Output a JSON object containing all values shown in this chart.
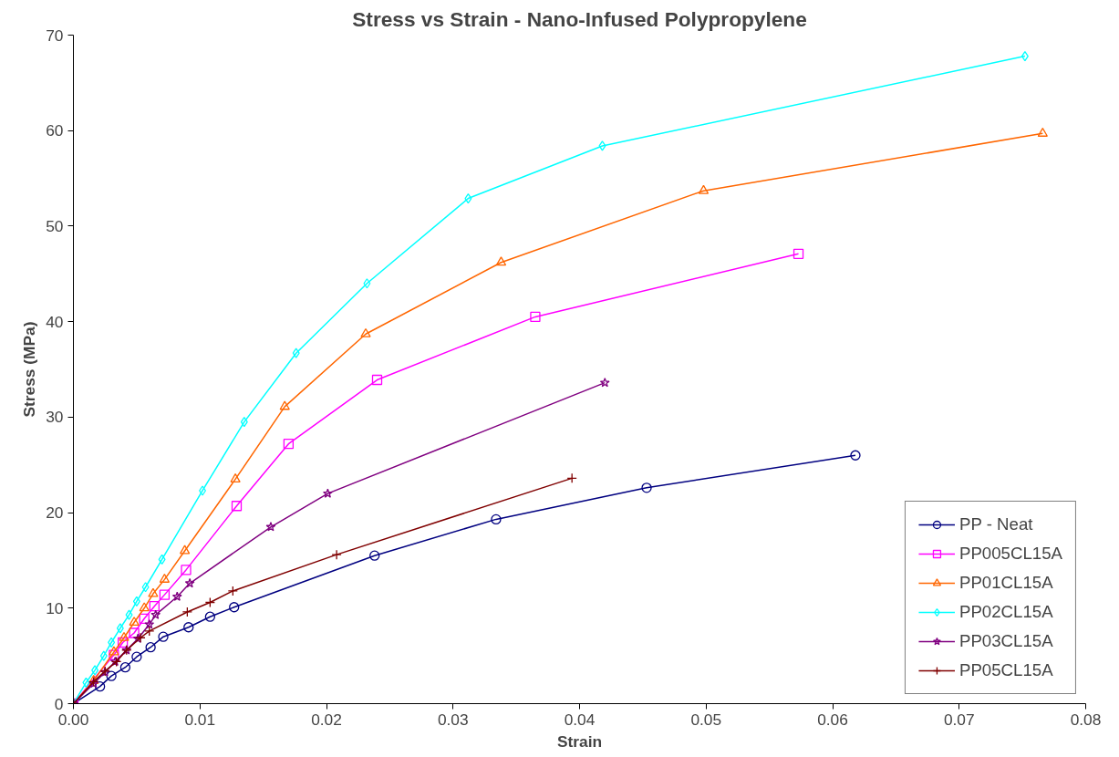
{
  "chart_data": {
    "type": "line",
    "title": "Stress vs Strain - Nano-Infused Polypropylene",
    "xlabel": "Strain",
    "ylabel": "Stress (MPa)",
    "xlim": [
      0,
      0.08
    ],
    "xticks": [
      {
        "value": 0,
        "label": "0.00"
      },
      {
        "value": 0.01,
        "label": "0.01"
      },
      {
        "value": 0.02,
        "label": "0.02"
      },
      {
        "value": 0.03,
        "label": "0.03"
      },
      {
        "value": 0.04,
        "label": "0.04"
      },
      {
        "value": 0.05,
        "label": "0.05"
      },
      {
        "value": 0.06,
        "label": "0.06"
      },
      {
        "value": 0.07,
        "label": "0.07"
      },
      {
        "value": 0.08,
        "label": "0.08"
      }
    ],
    "ylim": [
      0,
      70
    ],
    "yticks": [
      0,
      10,
      20,
      30,
      40,
      50,
      60,
      70
    ],
    "grid": false,
    "legend": "bottom right",
    "line_style": "solid",
    "series": [
      {
        "name": "PP - Neat",
        "color": "#000080",
        "marker": "circle",
        "x": [
          0,
          0.0021,
          0.003,
          0.0041,
          0.005,
          0.0061,
          0.0071,
          0.0091,
          0.0108,
          0.0127,
          0.0238,
          0.0334,
          0.0453,
          0.0618
        ],
        "values": [
          0,
          1.8,
          2.9,
          3.8,
          4.9,
          5.9,
          7.0,
          8.0,
          9.1,
          10.1,
          15.5,
          19.3,
          22.6,
          26.0
        ]
      },
      {
        "name": "PP005CL15A",
        "color": "#ff00ff",
        "marker": "square",
        "x": [
          0,
          0.0032,
          0.0039,
          0.0048,
          0.0056,
          0.0064,
          0.0072,
          0.0089,
          0.0129,
          0.017,
          0.024,
          0.0365,
          0.0573
        ],
        "values": [
          0,
          5.1,
          6.4,
          7.4,
          8.9,
          10.2,
          11.4,
          14.0,
          20.7,
          27.2,
          33.9,
          40.5,
          47.1
        ]
      },
      {
        "name": "PP01CL15A",
        "color": "#ff6600",
        "marker": "triangle",
        "x": [
          0,
          0.0016,
          0.0032,
          0.004,
          0.0048,
          0.0056,
          0.0063,
          0.0072,
          0.0088,
          0.0128,
          0.0167,
          0.0231,
          0.0338,
          0.0498,
          0.0766
        ],
        "values": [
          0,
          2.4,
          5.4,
          6.9,
          8.5,
          10.0,
          11.5,
          13.0,
          16.0,
          23.5,
          31.1,
          38.7,
          46.2,
          53.7,
          59.7
        ]
      },
      {
        "name": "PP02CL15A",
        "color": "#00ffff",
        "marker": "diamond",
        "x": [
          0,
          0.001,
          0.0017,
          0.0024,
          0.003,
          0.0037,
          0.0044,
          0.005,
          0.0057,
          0.007,
          0.0102,
          0.0135,
          0.0176,
          0.0232,
          0.0312,
          0.0418,
          0.0752
        ],
        "values": [
          0,
          2.2,
          3.5,
          5.0,
          6.4,
          7.9,
          9.3,
          10.7,
          12.2,
          15.1,
          22.3,
          29.5,
          36.7,
          44.0,
          52.9,
          58.4,
          67.8
        ]
      },
      {
        "name": "PP03CL15A",
        "color": "#800080",
        "marker": "star",
        "x": [
          0,
          0.0016,
          0.0025,
          0.0033,
          0.0042,
          0.0051,
          0.006,
          0.0065,
          0.0082,
          0.0092,
          0.0156,
          0.0201,
          0.042
        ],
        "values": [
          0,
          2.1,
          3.3,
          4.4,
          5.6,
          6.8,
          8.3,
          9.3,
          11.2,
          12.6,
          18.5,
          22.0,
          33.6
        ]
      },
      {
        "name": "PP05CL15A",
        "color": "#800000",
        "marker": "cross",
        "x": [
          0,
          0.0016,
          0.0025,
          0.0034,
          0.0042,
          0.0053,
          0.006,
          0.009,
          0.0108,
          0.0126,
          0.0208,
          0.0394
        ],
        "values": [
          0,
          2.3,
          3.4,
          4.4,
          5.6,
          6.9,
          7.6,
          9.6,
          10.6,
          11.8,
          15.6,
          23.6
        ]
      }
    ]
  }
}
